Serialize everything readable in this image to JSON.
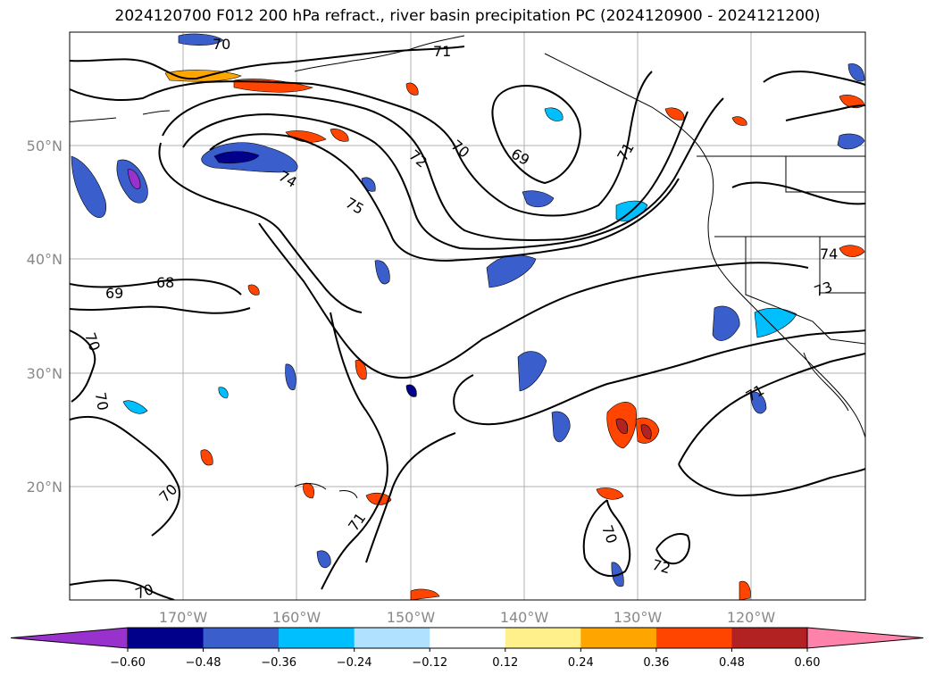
{
  "title": "2024120700 F012 200 hPa refract., river basin precipitation PC (2024120900 - 2024121200)",
  "map": {
    "lon_range": [
      -180,
      -110
    ],
    "lat_range": [
      10,
      60
    ],
    "lat_ticks": [
      "20°N",
      "30°N",
      "40°N",
      "50°N"
    ],
    "lon_ticks": [
      "170°W",
      "160°W",
      "150°W",
      "140°W",
      "130°W",
      "120°W"
    ],
    "grid": true,
    "contour_labels": [
      "70",
      "71",
      "72",
      "74",
      "75",
      "70",
      "69",
      "71",
      "69",
      "68",
      "70",
      "70",
      "70",
      "71",
      "71",
      "70",
      "72",
      "74",
      "73",
      "70"
    ]
  },
  "colorbar": {
    "tick_labels": [
      "−0.60",
      "−0.48",
      "−0.36",
      "−0.24",
      "−0.12",
      "0.12",
      "0.24",
      "0.36",
      "0.48",
      "0.60"
    ],
    "colors": [
      "#9932cc",
      "#00008b",
      "#3a5fcd",
      "#00bfff",
      "#b0e2ff",
      "#ffffff",
      "#fff08c",
      "#ffa500",
      "#ff4500",
      "#b22222",
      "#ff82ab"
    ],
    "extend": "both"
  }
}
